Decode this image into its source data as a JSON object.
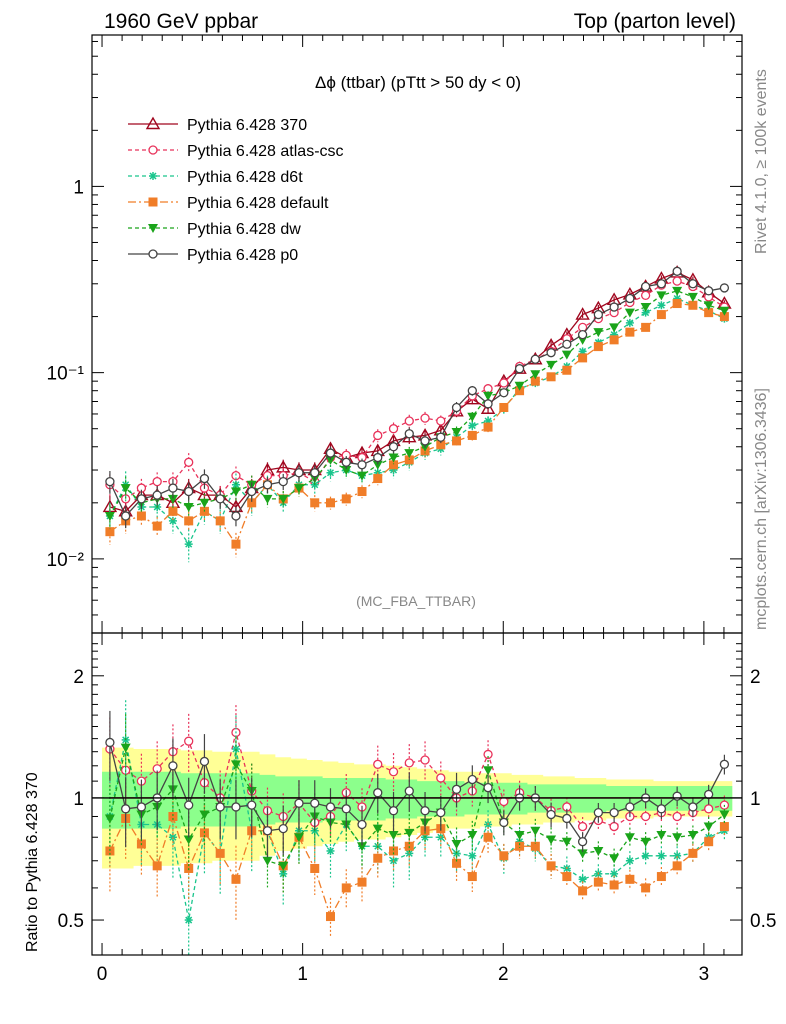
{
  "header": {
    "left_title": "1960 GeV ppbar",
    "right_title": "Top (parton level)"
  },
  "side_labels": {
    "rivet": "Rivet 4.1.0, ≥ 100k events",
    "source": "mcplots.cern.ch [arXiv:1306.3436]"
  },
  "watermark": "(MC_FBA_TTBAR)",
  "colors": {
    "p370": "#a0061e",
    "atlas": "#e8325a",
    "d6t": "#19c58c",
    "default": "#f07d28",
    "dw": "#1aa41a",
    "p0": "#444444",
    "band_inner": "#8cff8c",
    "band_outer": "#ffff96"
  },
  "chart_data": [
    {
      "type": "line",
      "title": "Δϕ (ttbar) (pTtt > 50 dy < 0)",
      "xlabel": "",
      "ylabel": "",
      "yscale": "log",
      "xlim": [
        -0.05,
        3.19
      ],
      "ylim": [
        0.004,
        6.5
      ],
      "y_ticks": [
        {
          "v": 0.01,
          "label": "10⁻²"
        },
        {
          "v": 0.1,
          "label": "10⁻¹"
        },
        {
          "v": 1,
          "label": "1"
        }
      ],
      "x": [
        0.0393,
        0.1178,
        0.1963,
        0.2749,
        0.3534,
        0.432,
        0.5105,
        0.589,
        0.6676,
        0.7461,
        0.8247,
        0.9032,
        0.9817,
        1.0603,
        1.1388,
        1.2174,
        1.2959,
        1.3744,
        1.453,
        1.5315,
        1.6101,
        1.6886,
        1.7671,
        1.8457,
        1.9242,
        2.0028,
        2.0813,
        2.1598,
        2.2384,
        2.3169,
        2.3955,
        2.474,
        2.5525,
        2.6311,
        2.7096,
        2.7882,
        2.8667,
        2.9452,
        3.0238,
        3.1023
      ],
      "series": [
        {
          "name": "Pythia 6.428 370",
          "key": "p370",
          "marker": "triangle-open",
          "dash": "",
          "values": [
            0.019,
            0.018,
            0.022,
            0.022,
            0.02,
            0.024,
            0.022,
            0.022,
            0.019,
            0.024,
            0.03,
            0.031,
            0.03,
            0.03,
            0.039,
            0.035,
            0.037,
            0.038,
            0.043,
            0.045,
            0.046,
            0.049,
            0.062,
            0.072,
            0.064,
            0.09,
            0.105,
            0.118,
            0.14,
            0.16,
            0.205,
            0.222,
            0.246,
            0.263,
            0.29,
            0.32,
            0.345,
            0.315,
            0.27,
            0.235
          ],
          "err": [
            0.15,
            0.15,
            0.12,
            0.12,
            0.12,
            0.12,
            0.12,
            0.12,
            0.12,
            0.12,
            0.1,
            0.1,
            0.1,
            0.1,
            0.08,
            0.08,
            0.08,
            0.08,
            0.08,
            0.08,
            0.08,
            0.07,
            0.07,
            0.06,
            0.06,
            0.05,
            0.05,
            0.05,
            0.05,
            0.04,
            0.04,
            0.04,
            0.04,
            0.04,
            0.04,
            0.04,
            0.04,
            0.04,
            0.04,
            0.04
          ]
        },
        {
          "name": "Pythia 6.428 atlas-csc",
          "key": "atlas",
          "marker": "circle-open",
          "dash": "4,3",
          "values": [
            0.025,
            0.021,
            0.024,
            0.026,
            0.026,
            0.033,
            0.024,
            0.022,
            0.028,
            0.025,
            0.028,
            0.028,
            0.029,
            0.026,
            0.035,
            0.036,
            0.035,
            0.046,
            0.05,
            0.055,
            0.057,
            0.055,
            0.062,
            0.075,
            0.082,
            0.088,
            0.108,
            0.118,
            0.13,
            0.152,
            0.175,
            0.195,
            0.21,
            0.238,
            0.26,
            0.295,
            0.31,
            0.29,
            0.255,
            0.225
          ],
          "err": [
            0.14,
            0.14,
            0.12,
            0.12,
            0.12,
            0.12,
            0.12,
            0.12,
            0.12,
            0.12,
            0.1,
            0.1,
            0.1,
            0.1,
            0.08,
            0.08,
            0.08,
            0.08,
            0.08,
            0.08,
            0.08,
            0.07,
            0.07,
            0.06,
            0.06,
            0.05,
            0.05,
            0.05,
            0.05,
            0.04,
            0.04,
            0.04,
            0.04,
            0.04,
            0.04,
            0.04,
            0.04,
            0.04,
            0.04,
            0.04
          ]
        },
        {
          "name": "Pythia 6.428 d6t",
          "key": "d6t",
          "marker": "star",
          "dash": "4,3",
          "values": [
            0.017,
            0.025,
            0.019,
            0.019,
            0.016,
            0.012,
            0.018,
            0.016,
            0.025,
            0.02,
            0.025,
            0.02,
            0.025,
            0.025,
            0.029,
            0.03,
            0.028,
            0.029,
            0.03,
            0.033,
            0.037,
            0.039,
            0.045,
            0.052,
            0.055,
            0.064,
            0.082,
            0.088,
            0.095,
            0.108,
            0.13,
            0.145,
            0.16,
            0.185,
            0.21,
            0.23,
            0.25,
            0.23,
            0.215,
            0.195
          ],
          "err": [
            0.18,
            0.18,
            0.15,
            0.15,
            0.15,
            0.2,
            0.15,
            0.15,
            0.15,
            0.15,
            0.12,
            0.12,
            0.12,
            0.12,
            0.1,
            0.1,
            0.1,
            0.1,
            0.1,
            0.1,
            0.08,
            0.08,
            0.07,
            0.07,
            0.06,
            0.06,
            0.05,
            0.05,
            0.05,
            0.05,
            0.04,
            0.04,
            0.04,
            0.04,
            0.04,
            0.04,
            0.04,
            0.04,
            0.04,
            0.04
          ]
        },
        {
          "name": "Pythia 6.428 default",
          "key": "default",
          "marker": "square",
          "dash": "8,3,2,3",
          "values": [
            0.014,
            0.016,
            0.017,
            0.015,
            0.018,
            0.016,
            0.018,
            0.016,
            0.012,
            0.02,
            0.025,
            0.021,
            0.024,
            0.02,
            0.02,
            0.021,
            0.023,
            0.027,
            0.032,
            0.034,
            0.038,
            0.041,
            0.043,
            0.046,
            0.051,
            0.065,
            0.08,
            0.09,
            0.095,
            0.103,
            0.12,
            0.138,
            0.15,
            0.165,
            0.175,
            0.205,
            0.235,
            0.23,
            0.21,
            0.2
          ],
          "err": [
            0.15,
            0.15,
            0.12,
            0.12,
            0.12,
            0.12,
            0.12,
            0.12,
            0.15,
            0.12,
            0.1,
            0.1,
            0.1,
            0.1,
            0.08,
            0.08,
            0.08,
            0.08,
            0.08,
            0.08,
            0.08,
            0.07,
            0.07,
            0.06,
            0.06,
            0.05,
            0.05,
            0.05,
            0.05,
            0.04,
            0.04,
            0.04,
            0.04,
            0.04,
            0.04,
            0.04,
            0.04,
            0.04,
            0.04,
            0.04
          ]
        },
        {
          "name": "Pythia 6.428 dw",
          "key": "dw",
          "marker": "triangle-down",
          "dash": "4,3",
          "values": [
            0.017,
            0.024,
            0.02,
            0.021,
            0.021,
            0.019,
            0.02,
            0.021,
            0.023,
            0.025,
            0.021,
            0.021,
            0.024,
            0.027,
            0.034,
            0.03,
            0.028,
            0.032,
            0.035,
            0.037,
            0.04,
            0.045,
            0.048,
            0.058,
            0.075,
            0.078,
            0.085,
            0.098,
            0.11,
            0.125,
            0.15,
            0.165,
            0.175,
            0.21,
            0.225,
            0.26,
            0.275,
            0.255,
            0.23,
            0.215
          ],
          "err": [
            0.15,
            0.15,
            0.12,
            0.12,
            0.12,
            0.12,
            0.12,
            0.12,
            0.12,
            0.12,
            0.1,
            0.1,
            0.1,
            0.1,
            0.08,
            0.08,
            0.08,
            0.08,
            0.08,
            0.08,
            0.08,
            0.07,
            0.07,
            0.06,
            0.06,
            0.05,
            0.05,
            0.05,
            0.05,
            0.04,
            0.04,
            0.04,
            0.04,
            0.04,
            0.04,
            0.04,
            0.04,
            0.04,
            0.04,
            0.04
          ]
        },
        {
          "name": "Pythia 6.428 p0",
          "key": "p0",
          "marker": "circle-open",
          "dash": "",
          "values": [
            0.026,
            0.017,
            0.021,
            0.022,
            0.024,
            0.023,
            0.027,
            0.021,
            0.017,
            0.023,
            0.025,
            0.026,
            0.029,
            0.029,
            0.037,
            0.033,
            0.032,
            0.035,
            0.04,
            0.047,
            0.043,
            0.045,
            0.065,
            0.08,
            0.068,
            0.078,
            0.105,
            0.118,
            0.128,
            0.142,
            0.16,
            0.205,
            0.225,
            0.25,
            0.29,
            0.3,
            0.35,
            0.3,
            0.275,
            0.285
          ],
          "err": [
            0.14,
            0.14,
            0.12,
            0.12,
            0.12,
            0.12,
            0.12,
            0.12,
            0.12,
            0.12,
            0.1,
            0.1,
            0.1,
            0.1,
            0.08,
            0.08,
            0.08,
            0.08,
            0.08,
            0.08,
            0.08,
            0.07,
            0.07,
            0.06,
            0.06,
            0.05,
            0.05,
            0.05,
            0.05,
            0.04,
            0.04,
            0.04,
            0.04,
            0.04,
            0.04,
            0.04,
            0.04,
            0.04,
            0.04,
            0.04
          ]
        }
      ]
    },
    {
      "type": "line",
      "title": "",
      "xlabel": "",
      "ylabel": "Ratio to Pythia 6.428 370",
      "yscale": "log",
      "xlim": [
        -0.05,
        3.19
      ],
      "ylim": [
        0.41,
        2.55
      ],
      "x_ticks": [
        {
          "v": 0,
          "label": "0"
        },
        {
          "v": 1,
          "label": "1"
        },
        {
          "v": 2,
          "label": "2"
        },
        {
          "v": 3,
          "label": "3"
        }
      ],
      "y_ticks": [
        {
          "v": 0.5,
          "label": "0.5"
        },
        {
          "v": 1,
          "label": "1"
        },
        {
          "v": 2,
          "label": "2"
        }
      ],
      "reference_line": 1,
      "band_inner": [
        0.16,
        0.16,
        0.16,
        0.16,
        0.16,
        0.15,
        0.15,
        0.15,
        0.15,
        0.15,
        0.14,
        0.13,
        0.13,
        0.13,
        0.12,
        0.12,
        0.12,
        0.12,
        0.11,
        0.11,
        0.1,
        0.1,
        0.1,
        0.09,
        0.09,
        0.09,
        0.09,
        0.08,
        0.08,
        0.08,
        0.08,
        0.08,
        0.07,
        0.07,
        0.07,
        0.07,
        0.07,
        0.07,
        0.07,
        0.07
      ],
      "band_outer": [
        0.33,
        0.33,
        0.32,
        0.32,
        0.32,
        0.31,
        0.31,
        0.3,
        0.3,
        0.3,
        0.28,
        0.26,
        0.25,
        0.24,
        0.23,
        0.22,
        0.21,
        0.21,
        0.2,
        0.19,
        0.18,
        0.17,
        0.16,
        0.16,
        0.15,
        0.15,
        0.14,
        0.14,
        0.13,
        0.13,
        0.12,
        0.12,
        0.11,
        0.11,
        0.11,
        0.1,
        0.1,
        0.1,
        0.1,
        0.1
      ],
      "series": [
        {
          "key": "p370",
          "values": [
            1,
            1,
            1,
            1,
            1,
            1,
            1,
            1,
            1,
            1,
            1,
            1,
            1,
            1,
            1,
            1,
            1,
            1,
            1,
            1,
            1,
            1,
            1,
            1,
            1,
            1,
            1,
            1,
            1,
            1,
            1,
            1,
            1,
            1,
            1,
            1,
            1,
            1,
            1,
            1
          ]
        },
        {
          "key": "atlas",
          "values": [
            1.32,
            1.17,
            1.1,
            1.18,
            1.3,
            1.38,
            1.09,
            1.0,
            1.45,
            1.04,
            0.93,
            0.9,
            0.97,
            0.87,
            0.9,
            1.03,
            0.95,
            1.21,
            1.16,
            1.22,
            1.24,
            1.12,
            1.0,
            1.04,
            1.28,
            0.98,
            1.03,
            1.0,
            0.93,
            0.95,
            0.85,
            0.88,
            0.85,
            0.9,
            0.9,
            0.92,
            0.9,
            0.92,
            0.94,
            0.96
          ]
        },
        {
          "key": "d6t",
          "values": [
            0.9,
            1.39,
            0.86,
            0.86,
            0.8,
            0.5,
            0.82,
            0.73,
            1.32,
            0.83,
            0.83,
            0.65,
            0.83,
            0.83,
            0.74,
            0.86,
            0.76,
            0.76,
            0.7,
            0.73,
            0.8,
            0.8,
            0.73,
            0.72,
            0.86,
            0.71,
            0.78,
            0.75,
            0.68,
            0.67,
            0.63,
            0.65,
            0.65,
            0.7,
            0.72,
            0.72,
            0.72,
            0.73,
            0.8,
            0.83
          ]
        },
        {
          "key": "default",
          "values": [
            0.74,
            0.89,
            0.77,
            0.68,
            0.9,
            0.67,
            0.82,
            0.73,
            0.63,
            0.83,
            0.83,
            0.68,
            0.8,
            0.67,
            0.51,
            0.6,
            0.62,
            0.71,
            0.74,
            0.76,
            0.83,
            0.84,
            0.69,
            0.64,
            0.8,
            0.72,
            0.76,
            0.76,
            0.68,
            0.64,
            0.59,
            0.62,
            0.61,
            0.63,
            0.6,
            0.64,
            0.68,
            0.73,
            0.78,
            0.85
          ]
        },
        {
          "key": "dw",
          "values": [
            0.89,
            1.33,
            0.91,
            0.95,
            1.05,
            0.79,
            0.91,
            0.95,
            1.21,
            1.04,
            0.7,
            0.68,
            0.8,
            0.9,
            0.87,
            0.86,
            0.76,
            0.84,
            0.81,
            0.82,
            0.87,
            0.92,
            0.77,
            0.81,
            1.17,
            0.87,
            0.81,
            0.83,
            0.79,
            0.78,
            0.73,
            0.74,
            0.71,
            0.8,
            0.78,
            0.81,
            0.8,
            0.81,
            0.85,
            0.91
          ]
        },
        {
          "key": "p0",
          "values": [
            1.37,
            0.94,
            0.95,
            1.0,
            1.2,
            0.96,
            1.23,
            0.95,
            0.95,
            0.96,
            0.83,
            0.84,
            0.97,
            0.97,
            0.95,
            0.94,
            0.86,
            1.03,
            0.93,
            1.04,
            0.93,
            0.92,
            1.05,
            1.11,
            1.06,
            0.87,
            1.0,
            1.0,
            0.91,
            0.89,
            0.78,
            0.92,
            0.92,
            0.95,
            1.0,
            0.94,
            1.01,
            0.95,
            1.02,
            1.21
          ]
        }
      ]
    }
  ]
}
